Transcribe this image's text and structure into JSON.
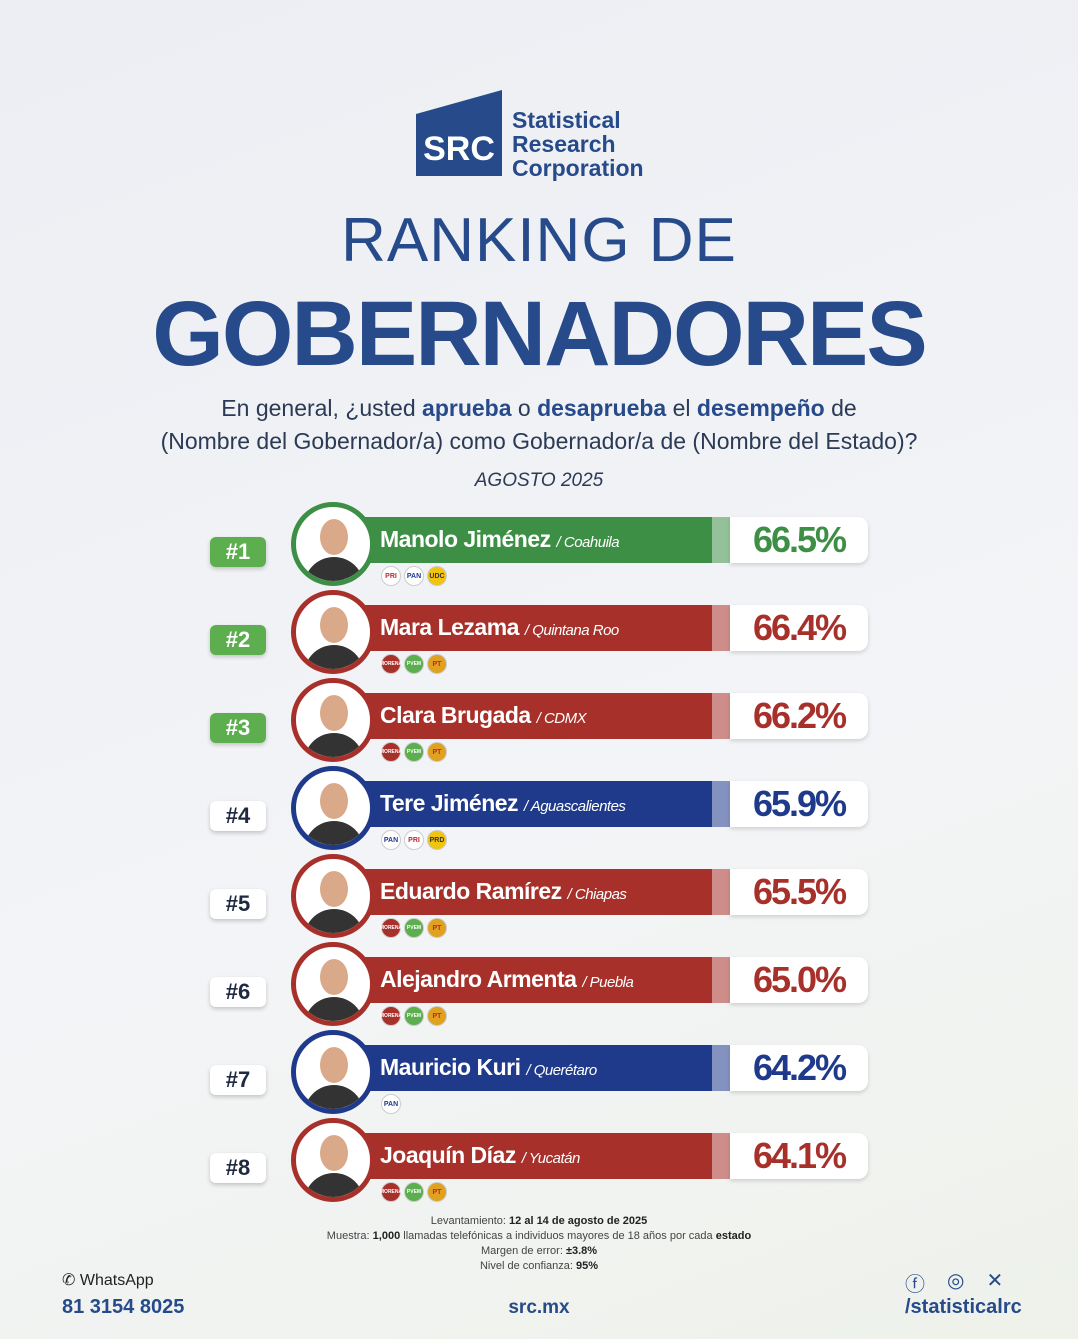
{
  "brand": {
    "mark": "SRC",
    "line1": "Statistical",
    "line2": "Research",
    "line3": "Corporation"
  },
  "title": {
    "line1": "RANKING DE",
    "line2": "GOBERNADORES"
  },
  "question": {
    "p1": "En general, ¿usted ",
    "b1": "aprueba",
    "p2": " o ",
    "b2": "desaprueba",
    "p3": " el ",
    "b3": "desempeño",
    "p4": " de",
    "line2": "(Nombre del Gobernador/a) como Gobernador/a de (Nombre del Estado)?"
  },
  "date": "AGOSTO 2025",
  "colors": {
    "green": "#3d8f45",
    "red": "#a8302a",
    "blue": "#1f3a8a"
  },
  "ranking": [
    {
      "rank": "#1",
      "name": "Manolo Jiménez",
      "state": "/ Coahuila",
      "pct": "66.5%",
      "color": "green",
      "parties": [
        "PRI",
        "PAN",
        "UDC"
      ]
    },
    {
      "rank": "#2",
      "name": "Mara Lezama",
      "state": "/ Quintana Roo",
      "pct": "66.4%",
      "color": "red",
      "parties": [
        "MORENA",
        "PVEM",
        "PT"
      ]
    },
    {
      "rank": "#3",
      "name": "Clara Brugada",
      "state": "/ CDMX",
      "pct": "66.2%",
      "color": "red",
      "parties": [
        "MORENA",
        "PVEM",
        "PT"
      ]
    },
    {
      "rank": "#4",
      "name": "Tere Jiménez",
      "state": "/ Aguascalientes",
      "pct": "65.9%",
      "color": "blue",
      "parties": [
        "PAN",
        "PRI",
        "PRD"
      ]
    },
    {
      "rank": "#5",
      "name": "Eduardo Ramírez",
      "state": "/ Chiapas",
      "pct": "65.5%",
      "color": "red",
      "parties": [
        "MORENA",
        "PVEM",
        "PT"
      ]
    },
    {
      "rank": "#6",
      "name": "Alejandro Armenta",
      "state": "/ Puebla",
      "pct": "65.0%",
      "color": "red",
      "parties": [
        "MORENA",
        "PVEM",
        "PT"
      ]
    },
    {
      "rank": "#7",
      "name": "Mauricio Kuri",
      "state": "/ Querétaro",
      "pct": "64.2%",
      "color": "blue",
      "parties": [
        "PAN"
      ]
    },
    {
      "rank": "#8",
      "name": "Joaquín Díaz",
      "state": "/ Yucatán",
      "pct": "64.1%",
      "color": "red",
      "parties": [
        "MORENA",
        "PVEM",
        "PT"
      ]
    }
  ],
  "footer": {
    "l1a": "Levantamiento: ",
    "l1b": "12 al 14 de agosto de 2025",
    "l2a": "Muestra: ",
    "l2b": "1,000",
    "l2c": " llamadas telefónicas a individuos mayores de 18 años por cada ",
    "l2d": "estado",
    "l3a": "Margen de error: ",
    "l3b": "±3.8%",
    "l4a": "Nivel de confianza: ",
    "l4b": "95%"
  },
  "contact": {
    "whatsapp_label": "WhatsApp",
    "phone": "81 3154 8025",
    "site": "src.mx",
    "handle": "/statisticalrc"
  }
}
